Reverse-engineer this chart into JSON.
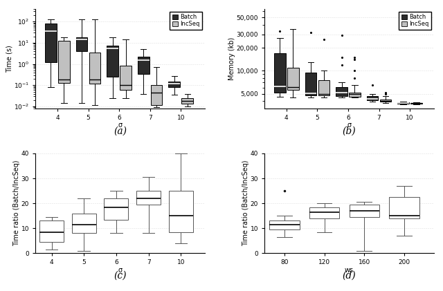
{
  "panel_a": {
    "title": "(a)",
    "xlabel": "σ",
    "ylabel": "Time (s)",
    "xticklabels": [
      "4",
      "5",
      "6",
      "7",
      "10"
    ],
    "ylim": [
      0.008,
      400
    ],
    "batch_boxes": [
      {
        "q1": 1.2,
        "med": 35.0,
        "q3": 80.0,
        "whislo": 0.08,
        "whishi": 130.0
      },
      {
        "q1": 4.0,
        "med": 14.0,
        "q3": 18.0,
        "whislo": 0.015,
        "whishi": 130.0
      },
      {
        "q1": 0.25,
        "med": 5.5,
        "q3": 7.5,
        "whislo": 0.025,
        "whishi": 18.0
      },
      {
        "q1": 0.35,
        "med": 1.5,
        "q3": 2.2,
        "whislo": 0.04,
        "whishi": 5.0
      },
      {
        "q1": 0.08,
        "med": 0.12,
        "q3": 0.15,
        "whislo": 0.035,
        "whishi": 0.28
      }
    ],
    "incseq_boxes": [
      {
        "q1": 0.13,
        "med": 0.19,
        "q3": 12.0,
        "whislo": 0.015,
        "whishi": 18.0
      },
      {
        "q1": 0.12,
        "med": 0.19,
        "q3": 3.5,
        "whislo": 0.012,
        "whishi": 130.0
      },
      {
        "q1": 0.06,
        "med": 0.1,
        "q3": 0.85,
        "whislo": 0.025,
        "whishi": 14.0
      },
      {
        "q1": 0.012,
        "med": 0.045,
        "q3": 0.1,
        "whislo": 0.009,
        "whishi": 0.7
      },
      {
        "q1": 0.013,
        "med": 0.018,
        "q3": 0.025,
        "whislo": 0.01,
        "whishi": 0.04
      }
    ]
  },
  "panel_b": {
    "title": "(b)",
    "xlabel": "σ",
    "ylabel": "Memory (kb)",
    "xticklabels": [
      "4",
      "5",
      "6",
      "7",
      "10"
    ],
    "ylim": [
      3200,
      60000
    ],
    "yticks": [
      5000,
      10000,
      20000,
      30000,
      50000
    ],
    "batch_boxes": [
      {
        "q1": 5200,
        "med": 6200,
        "q3": 17000,
        "whislo": 4600,
        "whishi": 27000,
        "fliers": [
          33000
        ]
      },
      {
        "q1": 4800,
        "med": 5100,
        "q3": 9500,
        "whislo": 4500,
        "whishi": 13000,
        "fliers": [
          32000
        ]
      },
      {
        "q1": 4700,
        "med": 5200,
        "q3": 6100,
        "whislo": 4500,
        "whishi": 7000,
        "fliers": [
          12000,
          15000,
          29000
        ]
      },
      {
        "q1": 4100,
        "med": 4300,
        "q3": 4700,
        "whislo": 3900,
        "whishi": 5000,
        "fliers": [
          6500
        ]
      },
      {
        "q1": 3700,
        "med": 3800,
        "q3": 3850,
        "whislo": 3650,
        "whishi": 3900,
        "fliers": []
      }
    ],
    "incseq_boxes": [
      {
        "q1": 5600,
        "med": 6100,
        "q3": 11000,
        "whislo": 4500,
        "whishi": 35000,
        "fliers": []
      },
      {
        "q1": 4800,
        "med": 5000,
        "q3": 7600,
        "whislo": 4500,
        "whishi": 10000,
        "fliers": [
          26000
        ]
      },
      {
        "q1": 4600,
        "med": 5000,
        "q3": 5200,
        "whislo": 4500,
        "whishi": 6500,
        "fliers": [
          8000,
          10000,
          14000,
          15000
        ]
      },
      {
        "q1": 3900,
        "med": 4000,
        "q3": 4200,
        "whislo": 3800,
        "whishi": 4700,
        "fliers": [
          5000,
          5200
        ]
      },
      {
        "q1": 3700,
        "med": 3750,
        "q3": 3800,
        "whislo": 3650,
        "whishi": 3850,
        "fliers": []
      }
    ]
  },
  "panel_c": {
    "title": "(c)",
    "xlabel": "σ",
    "ylabel": "Time ratio (Batch/IncSeq)",
    "xticklabels": [
      "4",
      "5",
      "6",
      "7",
      "10"
    ],
    "ylim": [
      0,
      40
    ],
    "yticks": [
      0,
      10,
      20,
      30,
      40
    ],
    "boxes": [
      {
        "q1": 4.5,
        "med": 8.5,
        "q3": 13.0,
        "whislo": 1.5,
        "whishi": 14.5
      },
      {
        "q1": 8.0,
        "med": 11.5,
        "q3": 16.0,
        "whislo": 1.0,
        "whishi": 22.0
      },
      {
        "q1": 13.5,
        "med": 18.5,
        "q3": 22.0,
        "whislo": 8.0,
        "whishi": 25.0
      },
      {
        "q1": 19.5,
        "med": 22.0,
        "q3": 25.0,
        "whislo": 8.0,
        "whishi": 30.5
      },
      {
        "q1": 8.5,
        "med": 15.0,
        "q3": 25.0,
        "whislo": 4.0,
        "whishi": 40.0
      }
    ]
  },
  "panel_d": {
    "title": "(d)",
    "xlabel": "ws",
    "ylabel": "Time ratio (Batch/IncSeq)",
    "xticklabels": [
      "80",
      "120",
      "160",
      "200"
    ],
    "ylim": [
      0,
      40
    ],
    "yticks": [
      0,
      10,
      20,
      30,
      40
    ],
    "boxes": [
      {
        "q1": 9.5,
        "med": 11.5,
        "q3": 13.0,
        "whislo": 6.5,
        "whishi": 15.0,
        "fliers": [
          25.0
        ]
      },
      {
        "q1": 14.0,
        "med": 16.5,
        "q3": 18.5,
        "whislo": 8.5,
        "whishi": 20.0
      },
      {
        "q1": 14.5,
        "med": 17.0,
        "q3": 19.5,
        "whislo": 1.0,
        "whishi": 20.5
      },
      {
        "q1": 14.0,
        "med": 15.0,
        "q3": 22.5,
        "whislo": 7.0,
        "whishi": 27.0
      }
    ]
  },
  "batch_color": "#2b2b2b",
  "incseq_color": "#c0c0c0",
  "box_edge_color": "#555555"
}
